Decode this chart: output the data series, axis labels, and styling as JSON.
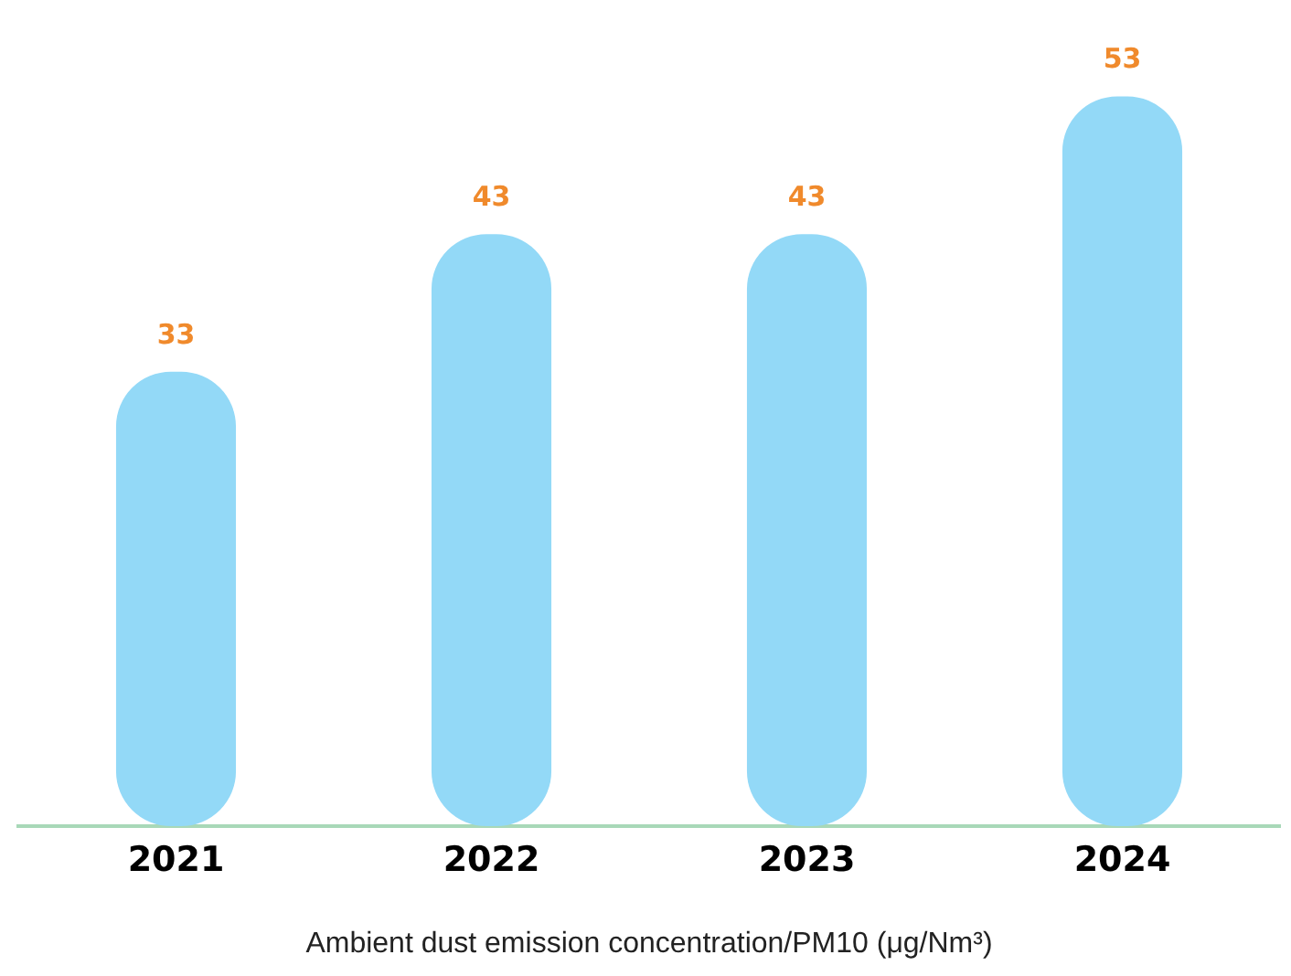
{
  "chart_data": {
    "type": "bar",
    "categories": [
      "2021",
      "2022",
      "2023",
      "2024"
    ],
    "values": [
      33,
      43,
      43,
      53
    ],
    "color": "#93d9f7",
    "xlabel": "Ambient dust emission concentration/PM10 (μg/Nm³)",
    "data_labels": true,
    "grid": false,
    "legend": false,
    "tick_labels": "x"
  }
}
